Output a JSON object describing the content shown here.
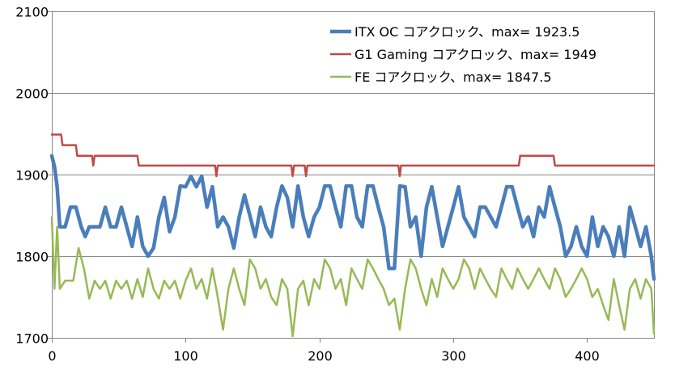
{
  "chart_data": {
    "type": "line",
    "title": "",
    "xlabel": "",
    "ylabel": "",
    "xlim": [
      0,
      450
    ],
    "ylim": [
      1700,
      2100
    ],
    "x_ticks": [
      0,
      100,
      200,
      300,
      400
    ],
    "y_ticks": [
      1700,
      1800,
      1900,
      2000,
      2100
    ],
    "grid": "horizontal",
    "legend_position": "top-right",
    "series": [
      {
        "name": "ITX OC コアクロック、max= 1923.5",
        "color": "#4a7ebb",
        "points": [
          [
            0,
            1923
          ],
          [
            2,
            1910
          ],
          [
            4,
            1885
          ],
          [
            6,
            1836
          ],
          [
            10,
            1836
          ],
          [
            14,
            1860
          ],
          [
            18,
            1860
          ],
          [
            22,
            1836
          ],
          [
            25,
            1824
          ],
          [
            28,
            1836
          ],
          [
            32,
            1836
          ],
          [
            36,
            1836
          ],
          [
            40,
            1860
          ],
          [
            44,
            1836
          ],
          [
            48,
            1836
          ],
          [
            52,
            1860
          ],
          [
            56,
            1836
          ],
          [
            60,
            1812
          ],
          [
            64,
            1848
          ],
          [
            68,
            1812
          ],
          [
            72,
            1800
          ],
          [
            76,
            1810
          ],
          [
            80,
            1848
          ],
          [
            84,
            1872
          ],
          [
            88,
            1830
          ],
          [
            92,
            1848
          ],
          [
            96,
            1886
          ],
          [
            100,
            1885
          ],
          [
            104,
            1898
          ],
          [
            108,
            1885
          ],
          [
            112,
            1898
          ],
          [
            116,
            1860
          ],
          [
            120,
            1885
          ],
          [
            124,
            1836
          ],
          [
            128,
            1848
          ],
          [
            132,
            1836
          ],
          [
            136,
            1810
          ],
          [
            140,
            1848
          ],
          [
            144,
            1875
          ],
          [
            148,
            1850
          ],
          [
            152,
            1824
          ],
          [
            156,
            1860
          ],
          [
            160,
            1836
          ],
          [
            164,
            1824
          ],
          [
            168,
            1860
          ],
          [
            172,
            1886
          ],
          [
            176,
            1872
          ],
          [
            180,
            1836
          ],
          [
            184,
            1886
          ],
          [
            188,
            1848
          ],
          [
            192,
            1824
          ],
          [
            196,
            1848
          ],
          [
            200,
            1860
          ],
          [
            204,
            1886
          ],
          [
            208,
            1886
          ],
          [
            212,
            1860
          ],
          [
            216,
            1836
          ],
          [
            220,
            1886
          ],
          [
            224,
            1886
          ],
          [
            228,
            1848
          ],
          [
            232,
            1836
          ],
          [
            236,
            1886
          ],
          [
            240,
            1886
          ],
          [
            244,
            1860
          ],
          [
            248,
            1836
          ],
          [
            252,
            1785
          ],
          [
            256,
            1785
          ],
          [
            260,
            1886
          ],
          [
            264,
            1885
          ],
          [
            268,
            1836
          ],
          [
            272,
            1848
          ],
          [
            276,
            1800
          ],
          [
            280,
            1860
          ],
          [
            284,
            1885
          ],
          [
            288,
            1848
          ],
          [
            292,
            1812
          ],
          [
            296,
            1836
          ],
          [
            300,
            1860
          ],
          [
            304,
            1885
          ],
          [
            308,
            1848
          ],
          [
            312,
            1836
          ],
          [
            316,
            1824
          ],
          [
            320,
            1860
          ],
          [
            324,
            1860
          ],
          [
            328,
            1848
          ],
          [
            332,
            1836
          ],
          [
            336,
            1860
          ],
          [
            340,
            1885
          ],
          [
            344,
            1885
          ],
          [
            348,
            1860
          ],
          [
            352,
            1836
          ],
          [
            356,
            1848
          ],
          [
            360,
            1824
          ],
          [
            364,
            1860
          ],
          [
            368,
            1848
          ],
          [
            372,
            1885
          ],
          [
            376,
            1860
          ],
          [
            380,
            1836
          ],
          [
            384,
            1800
          ],
          [
            388,
            1812
          ],
          [
            392,
            1836
          ],
          [
            396,
            1812
          ],
          [
            400,
            1800
          ],
          [
            404,
            1848
          ],
          [
            408,
            1812
          ],
          [
            412,
            1836
          ],
          [
            416,
            1824
          ],
          [
            420,
            1800
          ],
          [
            424,
            1836
          ],
          [
            428,
            1800
          ],
          [
            432,
            1860
          ],
          [
            436,
            1836
          ],
          [
            440,
            1812
          ],
          [
            444,
            1836
          ],
          [
            448,
            1800
          ],
          [
            450,
            1772
          ]
        ]
      },
      {
        "name": "G1 Gaming コアクロック、max= 1949",
        "color": "#be4b48",
        "points": [
          [
            0,
            1949
          ],
          [
            7,
            1949
          ],
          [
            8,
            1936
          ],
          [
            18,
            1936
          ],
          [
            19,
            1923
          ],
          [
            30,
            1923
          ],
          [
            31,
            1911
          ],
          [
            32,
            1923
          ],
          [
            64,
            1923
          ],
          [
            65,
            1911
          ],
          [
            122,
            1911
          ],
          [
            123,
            1898
          ],
          [
            124,
            1911
          ],
          [
            179,
            1911
          ],
          [
            180,
            1898
          ],
          [
            181,
            1911
          ],
          [
            189,
            1911
          ],
          [
            190,
            1898
          ],
          [
            191,
            1911
          ],
          [
            259,
            1911
          ],
          [
            260,
            1898
          ],
          [
            261,
            1911
          ],
          [
            349,
            1911
          ],
          [
            350,
            1923
          ],
          [
            375,
            1923
          ],
          [
            376,
            1911
          ],
          [
            450,
            1911
          ]
        ]
      },
      {
        "name": "FE コアクロック、max= 1847.5",
        "color": "#98b954",
        "points": [
          [
            0,
            1848
          ],
          [
            2,
            1760
          ],
          [
            4,
            1836
          ],
          [
            6,
            1760
          ],
          [
            10,
            1770
          ],
          [
            16,
            1770
          ],
          [
            20,
            1810
          ],
          [
            24,
            1785
          ],
          [
            28,
            1748
          ],
          [
            32,
            1770
          ],
          [
            36,
            1760
          ],
          [
            40,
            1770
          ],
          [
            44,
            1748
          ],
          [
            48,
            1770
          ],
          [
            52,
            1760
          ],
          [
            56,
            1770
          ],
          [
            60,
            1748
          ],
          [
            64,
            1772
          ],
          [
            68,
            1750
          ],
          [
            72,
            1785
          ],
          [
            76,
            1760
          ],
          [
            80,
            1748
          ],
          [
            84,
            1770
          ],
          [
            88,
            1760
          ],
          [
            92,
            1770
          ],
          [
            96,
            1748
          ],
          [
            100,
            1770
          ],
          [
            104,
            1785
          ],
          [
            108,
            1760
          ],
          [
            112,
            1772
          ],
          [
            116,
            1748
          ],
          [
            120,
            1785
          ],
          [
            124,
            1750
          ],
          [
            128,
            1710
          ],
          [
            132,
            1760
          ],
          [
            136,
            1785
          ],
          [
            140,
            1760
          ],
          [
            144,
            1740
          ],
          [
            148,
            1796
          ],
          [
            152,
            1785
          ],
          [
            156,
            1760
          ],
          [
            160,
            1772
          ],
          [
            164,
            1750
          ],
          [
            168,
            1740
          ],
          [
            172,
            1772
          ],
          [
            176,
            1760
          ],
          [
            180,
            1702
          ],
          [
            184,
            1760
          ],
          [
            188,
            1770
          ],
          [
            192,
            1740
          ],
          [
            196,
            1772
          ],
          [
            200,
            1760
          ],
          [
            204,
            1796
          ],
          [
            208,
            1785
          ],
          [
            212,
            1760
          ],
          [
            216,
            1772
          ],
          [
            220,
            1740
          ],
          [
            224,
            1785
          ],
          [
            228,
            1772
          ],
          [
            232,
            1760
          ],
          [
            236,
            1796
          ],
          [
            240,
            1785
          ],
          [
            244,
            1772
          ],
          [
            248,
            1760
          ],
          [
            252,
            1740
          ],
          [
            256,
            1748
          ],
          [
            260,
            1710
          ],
          [
            264,
            1760
          ],
          [
            268,
            1796
          ],
          [
            272,
            1785
          ],
          [
            276,
            1760
          ],
          [
            280,
            1740
          ],
          [
            284,
            1772
          ],
          [
            288,
            1750
          ],
          [
            292,
            1785
          ],
          [
            296,
            1772
          ],
          [
            300,
            1760
          ],
          [
            304,
            1772
          ],
          [
            308,
            1796
          ],
          [
            312,
            1785
          ],
          [
            316,
            1760
          ],
          [
            320,
            1785
          ],
          [
            324,
            1772
          ],
          [
            328,
            1760
          ],
          [
            332,
            1750
          ],
          [
            336,
            1785
          ],
          [
            340,
            1772
          ],
          [
            344,
            1760
          ],
          [
            348,
            1785
          ],
          [
            352,
            1772
          ],
          [
            356,
            1760
          ],
          [
            360,
            1772
          ],
          [
            364,
            1785
          ],
          [
            368,
            1772
          ],
          [
            372,
            1760
          ],
          [
            376,
            1785
          ],
          [
            380,
            1772
          ],
          [
            384,
            1750
          ],
          [
            388,
            1760
          ],
          [
            392,
            1772
          ],
          [
            396,
            1785
          ],
          [
            400,
            1772
          ],
          [
            404,
            1750
          ],
          [
            408,
            1760
          ],
          [
            412,
            1740
          ],
          [
            416,
            1722
          ],
          [
            420,
            1772
          ],
          [
            424,
            1740
          ],
          [
            428,
            1710
          ],
          [
            432,
            1760
          ],
          [
            436,
            1772
          ],
          [
            440,
            1748
          ],
          [
            444,
            1772
          ],
          [
            448,
            1760
          ],
          [
            450,
            1705
          ]
        ]
      }
    ]
  }
}
